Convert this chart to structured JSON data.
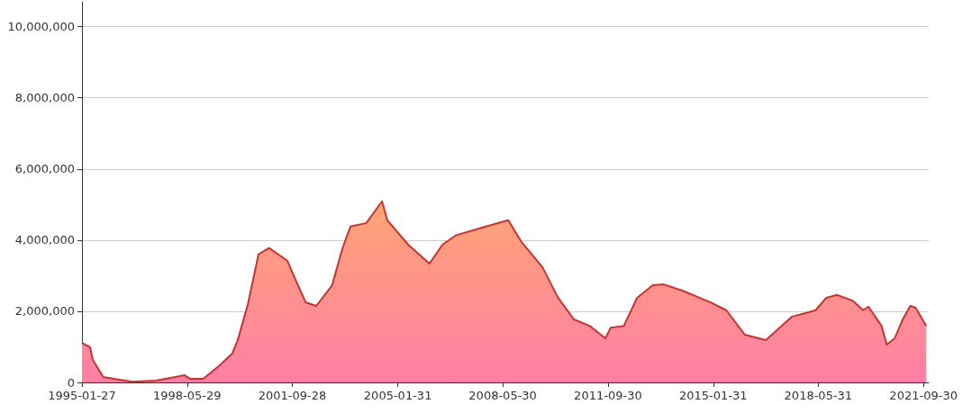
{
  "chart_data": {
    "type": "area",
    "x": [
      "1995-01-27",
      "1995-05",
      "1995-06",
      "1995-10",
      "1996-02",
      "1996-09",
      "1997-06",
      "1998-05",
      "1998-07",
      "1998-12",
      "1999-06",
      "1999-11",
      "2000-01",
      "2000-05",
      "2000-09",
      "2001-01",
      "2001-08",
      "2001-11",
      "2002-03",
      "2002-07",
      "2003-01",
      "2003-05",
      "2003-08",
      "2004-02",
      "2004-08",
      "2004-10",
      "2005-06",
      "2006-02",
      "2006-07",
      "2006-12",
      "2007-10",
      "2008-08",
      "2009-01",
      "2009-09",
      "2010-03",
      "2010-09",
      "2011-03",
      "2011-09",
      "2011-11",
      "2012-04",
      "2012-09",
      "2013-03",
      "2013-07",
      "2014-03",
      "2015-01",
      "2015-07",
      "2016-02",
      "2016-10",
      "2017-08",
      "2018-01",
      "2018-05",
      "2018-09",
      "2019-01",
      "2019-07",
      "2019-11",
      "2020-01",
      "2020-06",
      "2020-08",
      "2020-11",
      "2021-02",
      "2021-05",
      "2021-07",
      "2021-11"
    ],
    "series": [
      {
        "color": "#c23531",
        "values": [
          1110000,
          990000,
          630000,
          150000,
          100000,
          20000,
          50000,
          200000,
          100000,
          100000,
          460000,
          810000,
          1160000,
          2200000,
          3600000,
          3780000,
          3420000,
          2900000,
          2250000,
          2150000,
          2730000,
          3770000,
          4380000,
          4480000,
          5090000,
          4560000,
          3870000,
          3340000,
          3870000,
          4130000,
          4350000,
          4560000,
          3950000,
          3240000,
          2380000,
          1770000,
          1590000,
          1240000,
          1540000,
          1590000,
          2380000,
          2730000,
          2760000,
          2560000,
          2250000,
          2030000,
          1340000,
          1190000,
          1850000,
          1950000,
          2030000,
          2380000,
          2460000,
          2300000,
          2030000,
          2130000,
          1590000,
          1060000,
          1240000,
          1770000,
          2150000,
          2100000,
          1590000
        ]
      }
    ],
    "xlim": [
      "1995-01-27",
      "2021-11-30"
    ],
    "xticks": [
      {
        "value": "1995-01-27",
        "label": "1995-01-27"
      },
      {
        "value": "1998-05-29",
        "label": "1998-05-29"
      },
      {
        "value": "2001-09-28",
        "label": "2001-09-28"
      },
      {
        "value": "2005-01-31",
        "label": "2005-01-31"
      },
      {
        "value": "2008-05-30",
        "label": "2008-05-30"
      },
      {
        "value": "2011-09-30",
        "label": "2011-09-30"
      },
      {
        "value": "2015-01-31",
        "label": "2015-01-31"
      },
      {
        "value": "2018-05-31",
        "label": "2018-05-31"
      },
      {
        "value": "2021-09-30",
        "label": "2021-09-30"
      }
    ],
    "ylim": [
      0,
      10700000
    ],
    "yticks": [
      0,
      {
        "value": 2000000,
        "label": "2,000,000"
      },
      {
        "value": 4000000,
        "label": "4,000,000"
      },
      {
        "value": 6000000,
        "label": "6,000,000"
      },
      {
        "value": 8000000,
        "label": "8,000,000"
      },
      {
        "value": 10000000,
        "label": "10,000,000"
      }
    ],
    "grid": "y",
    "marker": "none"
  }
}
